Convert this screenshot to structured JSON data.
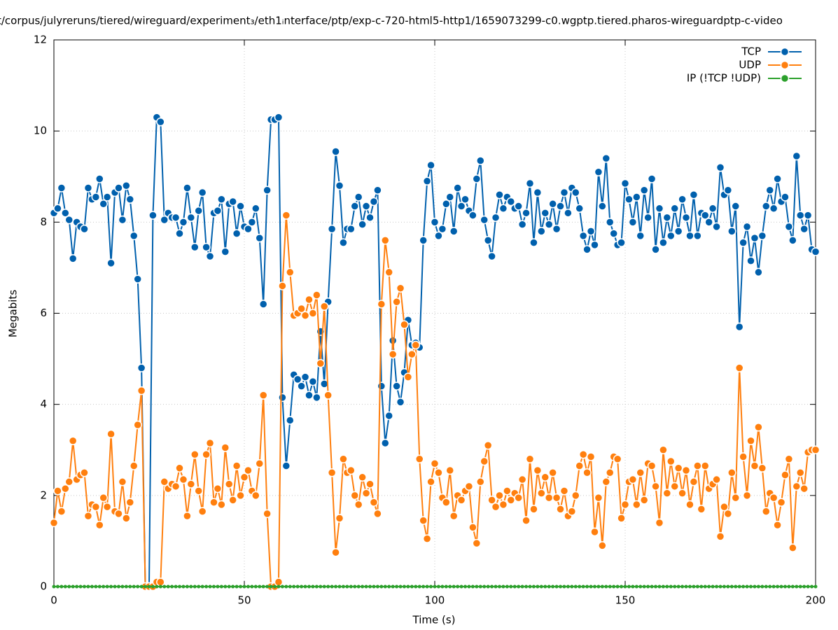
{
  "chart_data": {
    "type": "line",
    "title": "t/corpus/julyreruns/tiered/wireguard/experiment₃/eth1ᵢnterface/ptp/exp-c-720-html5-http1/1659073299-c0.wgptp.tiered.pharos-wireguardptp-c-video",
    "xlabel": "Time (s)",
    "ylabel": "Megabits",
    "xlim": [
      0,
      200
    ],
    "xticks": [
      0,
      50,
      100,
      150,
      200
    ],
    "ylim": [
      0,
      12
    ],
    "yticks": [
      0,
      2,
      4,
      6,
      8,
      10,
      12
    ],
    "grid": true,
    "legend": "top-right",
    "x": [
      0,
      1,
      2,
      3,
      4,
      5,
      6,
      7,
      8,
      9,
      10,
      11,
      12,
      13,
      14,
      15,
      16,
      17,
      18,
      19,
      20,
      21,
      22,
      23,
      24,
      25,
      26,
      27,
      28,
      29,
      30,
      31,
      32,
      33,
      34,
      35,
      36,
      37,
      38,
      39,
      40,
      41,
      42,
      43,
      44,
      45,
      46,
      47,
      48,
      49,
      50,
      51,
      52,
      53,
      54,
      55,
      56,
      57,
      58,
      59,
      60,
      61,
      62,
      63,
      64,
      65,
      66,
      67,
      68,
      69,
      70,
      71,
      72,
      73,
      74,
      75,
      76,
      77,
      78,
      79,
      80,
      81,
      82,
      83,
      84,
      85,
      86,
      87,
      88,
      89,
      90,
      91,
      92,
      93,
      94,
      95,
      96,
      97,
      98,
      99,
      100,
      101,
      102,
      103,
      104,
      105,
      106,
      107,
      108,
      109,
      110,
      111,
      112,
      113,
      114,
      115,
      116,
      117,
      118,
      119,
      120,
      121,
      122,
      123,
      124,
      125,
      126,
      127,
      128,
      129,
      130,
      131,
      132,
      133,
      134,
      135,
      136,
      137,
      138,
      139,
      140,
      141,
      142,
      143,
      144,
      145,
      146,
      147,
      148,
      149,
      150,
      151,
      152,
      153,
      154,
      155,
      156,
      157,
      158,
      159,
      160,
      161,
      162,
      163,
      164,
      165,
      166,
      167,
      168,
      169,
      170,
      171,
      172,
      173,
      174,
      175,
      176,
      177,
      178,
      179,
      180,
      181,
      182,
      183,
      184,
      185,
      186,
      187,
      188,
      189,
      190,
      191,
      192,
      193,
      194,
      195,
      196,
      197,
      198,
      199,
      200
    ],
    "series": [
      {
        "name": "TCP",
        "color": "#0060ad",
        "values": [
          8.2,
          8.3,
          8.75,
          8.2,
          8.05,
          7.2,
          8.0,
          7.9,
          7.85,
          8.75,
          8.5,
          8.55,
          8.95,
          8.4,
          8.55,
          7.1,
          8.65,
          8.75,
          8.05,
          8.8,
          8.5,
          7.7,
          6.75,
          4.8,
          0,
          0,
          8.15,
          10.3,
          10.2,
          8.05,
          8.2,
          8.1,
          8.1,
          7.75,
          8.0,
          8.75,
          8.1,
          7.45,
          8.25,
          8.65,
          7.45,
          7.25,
          8.2,
          8.25,
          8.5,
          7.35,
          8.4,
          8.45,
          7.75,
          8.35,
          7.9,
          7.85,
          8.0,
          8.3,
          7.65,
          6.2,
          8.7,
          10.25,
          10.25,
          10.3,
          4.15,
          2.65,
          3.65,
          4.65,
          4.55,
          4.4,
          4.6,
          4.2,
          4.5,
          4.15,
          5.6,
          4.45,
          6.25,
          7.85,
          9.55,
          8.8,
          7.55,
          7.85,
          7.85,
          8.35,
          8.55,
          7.95,
          8.35,
          8.1,
          8.45,
          8.7,
          4.4,
          3.15,
          3.75,
          5.4,
          4.4,
          4.05,
          4.7,
          5.85,
          5.3,
          5.35,
          5.25,
          7.6,
          8.9,
          9.25,
          8.0,
          7.7,
          7.85,
          8.4,
          8.55,
          7.8,
          8.75,
          8.35,
          8.5,
          8.25,
          8.15,
          8.95,
          9.35,
          8.05,
          7.6,
          7.25,
          8.1,
          8.6,
          8.3,
          8.55,
          8.45,
          8.3,
          8.35,
          7.95,
          8.2,
          8.85,
          7.55,
          8.65,
          7.8,
          8.2,
          7.95,
          8.4,
          7.85,
          8.35,
          8.65,
          8.2,
          8.75,
          8.65,
          8.3,
          7.7,
          7.4,
          7.8,
          7.5,
          9.1,
          8.35,
          9.4,
          8.0,
          7.75,
          7.5,
          7.55,
          8.85,
          8.5,
          8.0,
          8.55,
          7.7,
          8.7,
          8.1,
          8.95,
          7.4,
          8.3,
          7.55,
          8.1,
          7.7,
          8.3,
          7.8,
          8.5,
          8.1,
          7.7,
          8.6,
          7.7,
          8.2,
          8.15,
          8.0,
          8.3,
          7.9,
          9.2,
          8.6,
          8.7,
          7.8,
          8.35,
          5.7,
          7.55,
          7.9,
          7.15,
          7.65,
          6.9,
          7.7,
          8.35,
          8.7,
          8.3,
          8.95,
          8.45,
          8.55,
          7.9,
          7.6,
          9.45,
          8.15,
          7.85,
          8.15,
          7.4,
          7.35
        ]
      },
      {
        "name": "UDP",
        "color": "#ff7f0e",
        "values": [
          1.4,
          2.1,
          1.65,
          2.15,
          2.3,
          3.2,
          2.35,
          2.45,
          2.5,
          1.55,
          1.8,
          1.75,
          1.35,
          1.95,
          1.75,
          3.35,
          1.65,
          1.6,
          2.3,
          1.5,
          1.85,
          2.65,
          3.55,
          4.3,
          0,
          0,
          0,
          0.1,
          0.1,
          2.3,
          2.15,
          2.25,
          2.2,
          2.6,
          2.35,
          1.55,
          2.25,
          2.9,
          2.1,
          1.65,
          2.9,
          3.15,
          1.85,
          2.15,
          1.8,
          3.05,
          2.25,
          1.9,
          2.65,
          2.0,
          2.4,
          2.55,
          2.1,
          2.0,
          2.7,
          4.2,
          1.6,
          0,
          0,
          0.1,
          6.6,
          8.15,
          6.9,
          5.95,
          6.0,
          6.1,
          5.95,
          6.3,
          6.0,
          6.4,
          4.9,
          6.15,
          4.2,
          2.5,
          0.75,
          1.5,
          2.8,
          2.5,
          2.55,
          2.0,
          1.8,
          2.4,
          2.05,
          2.25,
          1.85,
          1.6,
          6.2,
          7.6,
          6.9,
          5.1,
          6.25,
          6.55,
          5.75,
          4.6,
          5.1,
          5.3,
          2.8,
          1.45,
          1.05,
          2.3,
          2.7,
          2.5,
          1.95,
          1.85,
          2.55,
          1.55,
          2.0,
          1.9,
          2.1,
          2.2,
          1.3,
          0.95,
          2.3,
          2.75,
          3.1,
          1.9,
          1.75,
          2.0,
          1.8,
          2.1,
          1.9,
          2.05,
          1.95,
          2.35,
          1.45,
          2.8,
          1.7,
          2.55,
          2.05,
          2.4,
          1.95,
          2.5,
          1.95,
          1.7,
          2.1,
          1.55,
          1.65,
          2.0,
          2.65,
          2.9,
          2.5,
          2.85,
          1.2,
          1.95,
          0.9,
          2.3,
          2.5,
          2.85,
          2.8,
          1.5,
          1.8,
          2.3,
          2.35,
          1.8,
          2.5,
          1.9,
          2.7,
          2.65,
          2.2,
          1.4,
          3.0,
          2.05,
          2.75,
          2.2,
          2.6,
          2.05,
          2.55,
          1.8,
          2.3,
          2.65,
          1.7,
          2.65,
          2.15,
          2.25,
          2.35,
          1.1,
          1.75,
          1.6,
          2.5,
          1.95,
          4.8,
          2.85,
          2.0,
          3.2,
          2.65,
          3.5,
          2.6,
          1.65,
          2.05,
          1.95,
          1.35,
          1.85,
          2.45,
          2.8,
          0.85,
          2.2,
          2.5,
          2.15,
          2.95,
          3.0,
          3.0
        ]
      },
      {
        "name": "IP (!TCP  !UDP)",
        "color": "#2ca02c",
        "values": [
          0,
          0,
          0,
          0,
          0,
          0,
          0,
          0,
          0,
          0,
          0,
          0,
          0,
          0,
          0,
          0,
          0,
          0,
          0,
          0,
          0,
          0,
          0,
          0,
          0,
          0,
          0,
          0,
          0,
          0,
          0,
          0,
          0,
          0,
          0,
          0,
          0,
          0,
          0,
          0,
          0,
          0,
          0,
          0,
          0,
          0,
          0,
          0,
          0,
          0,
          0,
          0,
          0,
          0,
          0,
          0,
          0,
          0,
          0,
          0,
          0,
          0,
          0,
          0,
          0,
          0,
          0,
          0,
          0,
          0,
          0,
          0,
          0,
          0,
          0,
          0,
          0,
          0,
          0,
          0,
          0,
          0,
          0,
          0,
          0,
          0,
          0,
          0,
          0,
          0,
          0,
          0,
          0,
          0,
          0,
          0,
          0,
          0,
          0,
          0,
          0,
          0,
          0,
          0,
          0,
          0,
          0,
          0,
          0,
          0,
          0,
          0,
          0,
          0,
          0,
          0,
          0,
          0,
          0,
          0,
          0,
          0,
          0,
          0,
          0,
          0,
          0,
          0,
          0,
          0,
          0,
          0,
          0,
          0,
          0,
          0,
          0,
          0,
          0,
          0,
          0,
          0,
          0,
          0,
          0,
          0,
          0,
          0,
          0,
          0,
          0,
          0,
          0,
          0,
          0,
          0,
          0,
          0,
          0,
          0,
          0,
          0,
          0,
          0,
          0,
          0,
          0,
          0,
          0,
          0,
          0,
          0,
          0,
          0,
          0,
          0,
          0,
          0,
          0,
          0,
          0,
          0,
          0,
          0,
          0,
          0,
          0,
          0,
          0,
          0,
          0,
          0,
          0,
          0,
          0,
          0,
          0,
          0,
          0,
          0,
          0
        ]
      }
    ]
  }
}
